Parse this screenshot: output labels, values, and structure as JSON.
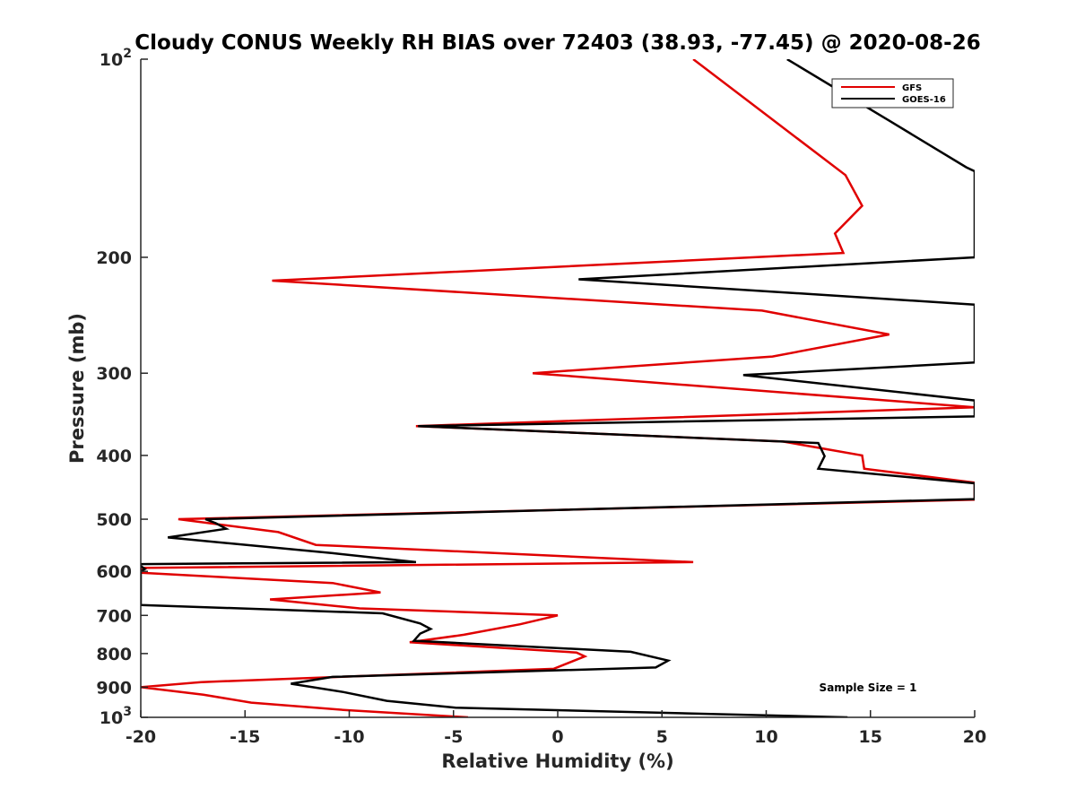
{
  "chart_data": {
    "type": "line",
    "title": "Cloudy CONUS Weekly RH BIAS over 72403 (38.93, -77.45) @ 2020-08-26",
    "xlabel": "Relative Humidity (%)",
    "ylabel": "Pressure (mb)",
    "xlim": [
      -20,
      20
    ],
    "ylim": [
      100,
      1000
    ],
    "y_scale": "log",
    "y_reversed": true,
    "x_ticks": [
      "-20",
      "-15",
      "-10",
      "-5",
      "0",
      "5",
      "10",
      "15",
      "20"
    ],
    "y_ticks": [
      {
        "value": 100,
        "base": "10",
        "exp": "2"
      },
      {
        "value": 200,
        "label": "200"
      },
      {
        "value": 300,
        "label": "300"
      },
      {
        "value": 400,
        "label": "400"
      },
      {
        "value": 500,
        "label": "500"
      },
      {
        "value": 600,
        "label": "600"
      },
      {
        "value": 700,
        "label": "700"
      },
      {
        "value": 800,
        "label": "800"
      },
      {
        "value": 900,
        "label": "900"
      },
      {
        "value": 1000,
        "base": "10",
        "exp": "3"
      }
    ],
    "grid": false,
    "legend_position": "top-right",
    "annotation": "Sample Size = 1",
    "series": [
      {
        "name": "GFS",
        "color": "#e00000",
        "points": [
          [
            6.5,
            100
          ],
          [
            13.8,
            150
          ],
          [
            14.6,
            167
          ],
          [
            13.3,
            184
          ],
          [
            13.7,
            197
          ],
          [
            -13.7,
            217
          ],
          [
            9.8,
            241
          ],
          [
            15.9,
            262
          ],
          [
            10.3,
            283
          ],
          [
            -1.2,
            300
          ],
          [
            20.0,
            338
          ],
          [
            -6.8,
            361
          ],
          [
            10.8,
            381
          ],
          [
            14.6,
            400
          ],
          [
            14.7,
            419
          ],
          [
            20.0,
            440
          ],
          [
            20.0,
            467
          ],
          [
            -18.2,
            500
          ],
          [
            -13.4,
            523
          ],
          [
            -11.6,
            547
          ],
          [
            6.5,
            581
          ],
          [
            -20.0,
            593
          ],
          [
            -20.0,
            603
          ],
          [
            -10.8,
            625
          ],
          [
            -8.5,
            646
          ],
          [
            -13.8,
            662
          ],
          [
            -9.5,
            683
          ],
          [
            0.0,
            700
          ],
          [
            -1.8,
            722
          ],
          [
            -4.5,
            749
          ],
          [
            -7.1,
            769
          ],
          [
            0.9,
            797
          ],
          [
            1.3,
            808
          ],
          [
            -0.2,
            844
          ],
          [
            -17.1,
            884
          ],
          [
            -20.0,
            900
          ],
          [
            -17.0,
            924
          ],
          [
            -14.7,
            950
          ],
          [
            -10.2,
            975
          ],
          [
            -4.3,
            1000
          ]
        ]
      },
      {
        "name": "GOES-16",
        "color": "#000000",
        "points": [
          [
            11.0,
            100
          ],
          [
            15.9,
            124
          ],
          [
            19.6,
            146
          ],
          [
            20.0,
            148
          ],
          [
            20.0,
            200
          ],
          [
            1.0,
            216
          ],
          [
            20.0,
            236
          ],
          [
            20.0,
            289
          ],
          [
            8.9,
            302
          ],
          [
            20.0,
            330
          ],
          [
            20.0,
            349
          ],
          [
            -6.7,
            361
          ],
          [
            12.5,
            383
          ],
          [
            12.8,
            401
          ],
          [
            12.5,
            419
          ],
          [
            20.0,
            441
          ],
          [
            20.0,
            466
          ],
          [
            -16.9,
            500
          ],
          [
            -16.4,
            507
          ],
          [
            -15.9,
            517
          ],
          [
            -18.7,
            533
          ],
          [
            -10.8,
            563
          ],
          [
            -6.8,
            581
          ],
          [
            -20.0,
            585
          ],
          [
            -20.0,
            589
          ],
          [
            -19.8,
            595
          ],
          [
            -20.0,
            600
          ],
          [
            -20.0,
            675
          ],
          [
            -8.4,
            695
          ],
          [
            -6.6,
            720
          ],
          [
            -6.1,
            734
          ],
          [
            -6.6,
            746
          ],
          [
            -6.9,
            765
          ],
          [
            3.5,
            795
          ],
          [
            5.3,
            820
          ],
          [
            4.7,
            840
          ],
          [
            -10.8,
            868
          ],
          [
            -12.8,
            889
          ],
          [
            -10.3,
            915
          ],
          [
            -8.2,
            944
          ],
          [
            -4.9,
            967
          ],
          [
            13.9,
            1000
          ]
        ]
      }
    ]
  }
}
